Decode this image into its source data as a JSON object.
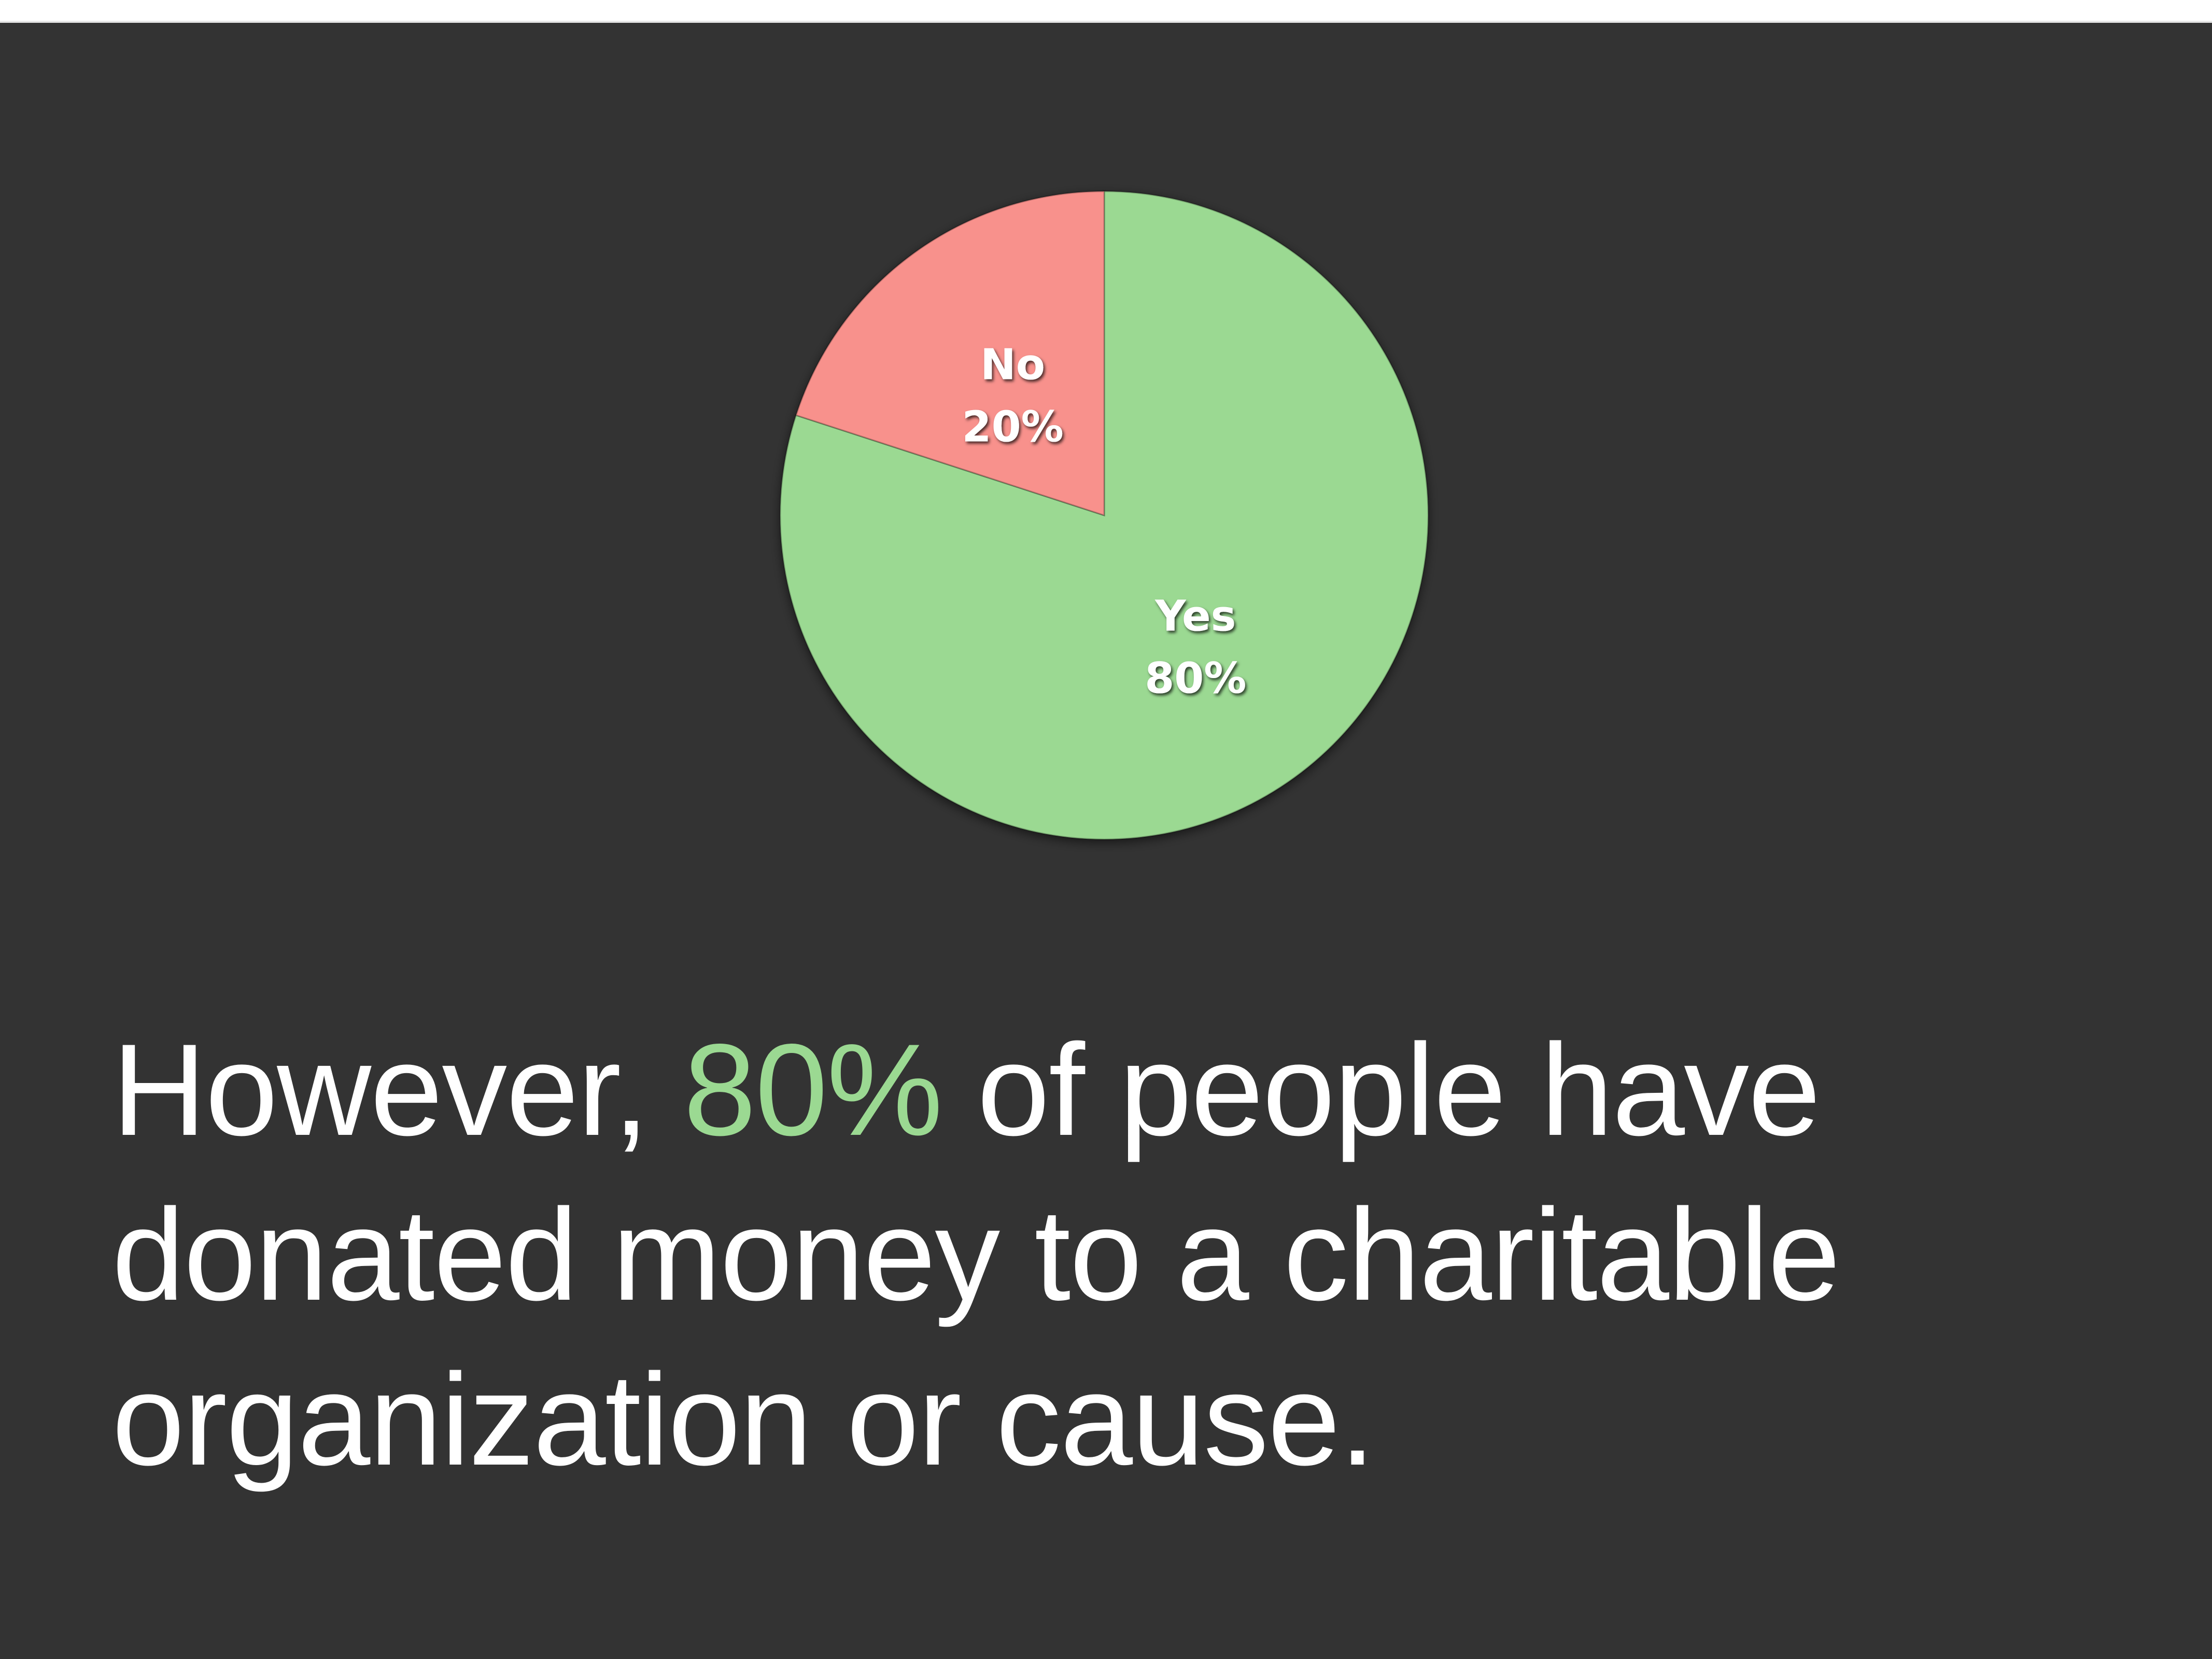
{
  "slide": {
    "caption": {
      "before": "However, ",
      "highlight": "80%",
      "after": " of people have donated money to a charitable organization or cause."
    }
  },
  "colors": {
    "background": "#333333",
    "yes": "#9bd992",
    "no": "#f8918c",
    "text": "#ffffff",
    "highlight": "#9bd992"
  },
  "chart_data": {
    "type": "pie",
    "title": "",
    "slices": [
      {
        "label": "Yes",
        "value": 80,
        "value_label": "80%",
        "color": "#9bd992"
      },
      {
        "label": "No",
        "value": 20,
        "value_label": "20%",
        "color": "#f8918c"
      }
    ],
    "start_angle_deg": 0,
    "direction": "clockwise",
    "legend": "none",
    "data_labels": "inside"
  }
}
